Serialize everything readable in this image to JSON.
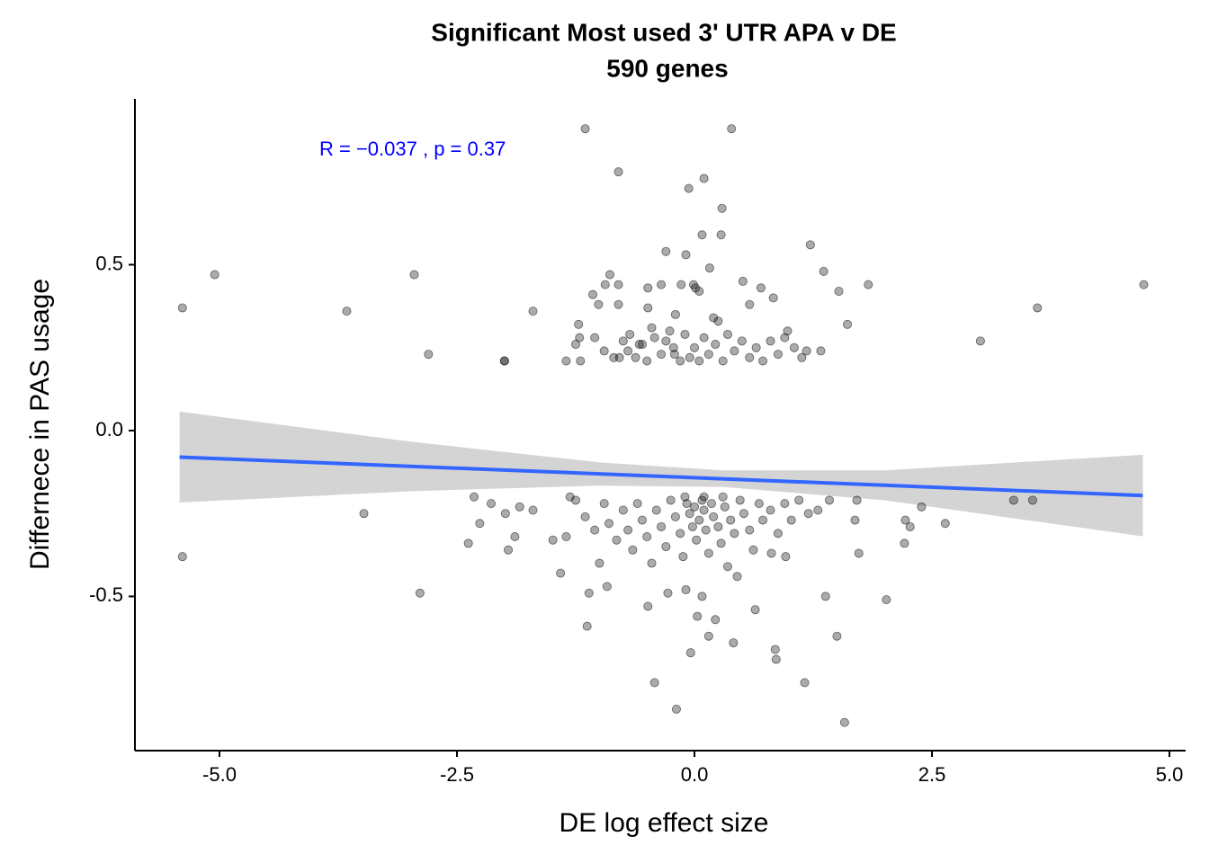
{
  "chart_data": {
    "type": "scatter",
    "title": "Significant Most used 3' UTR APA v DE",
    "subtitle": "590 genes",
    "x_label": "DE log effect size",
    "y_label": "Differnece in PAS usage",
    "annotation": "R = −0.037 , p = 0.37",
    "annotation_color": "#0000ff",
    "xlim": [
      -5.89,
      5.17
    ],
    "ylim": [
      -0.965,
      1.0
    ],
    "xticks": [
      {
        "value": -5,
        "label": "-5.0"
      },
      -2.5,
      {
        "value": 0,
        "label": "0.0"
      },
      2.5,
      {
        "value": 5,
        "label": "5.0"
      }
    ],
    "yticks": [
      -0.5,
      {
        "value": 0,
        "label": "0.0"
      },
      0.5
    ],
    "grid": false,
    "color": "#000000",
    "x": [
      -5.39,
      -5.05,
      -5.39,
      -3.66,
      -3.48,
      -2.95,
      -2.89,
      -2.8,
      -2.38,
      -2.32,
      -2.26,
      -2.14,
      -2.0,
      -2.0,
      -1.99,
      -1.96,
      -1.89,
      -1.84,
      -1.7,
      -1.7,
      -1.49,
      -1.41,
      -1.35,
      -1.31,
      -1.15,
      -1.13,
      -1.11,
      -1.07,
      -1.01,
      -1.22,
      -1.21,
      -1.2,
      -0.8,
      -0.92,
      -0.89,
      -0.94,
      -0.8,
      -0.8,
      -0.79,
      -0.68,
      -0.55,
      -0.49,
      -0.49,
      -0.45,
      -0.35,
      -0.3,
      -0.26,
      -0.21,
      -0.14,
      -0.09,
      -0.06,
      -0.01,
      0.01,
      0.05,
      0.08,
      0.1,
      0.16,
      0.2,
      0.28,
      0.29,
      0.39,
      0.51,
      0.58,
      0.7,
      0.83,
      0.98,
      1.22,
      1.36,
      1.52,
      1.61,
      1.83,
      1.13,
      1.33,
      3.01,
      3.61,
      4.73,
      3.36,
      3.56,
      2.64,
      2.39,
      2.27,
      2.22,
      2.21,
      2.02,
      1.73,
      1.71,
      1.69,
      1.5,
      1.58,
      1.38,
      1.16,
      0.96,
      0.85,
      0.86,
      0.64,
      0.41,
      0.22,
      0.15,
      0.08,
      -0.04,
      -0.19,
      -0.42,
      -0.49,
      -0.28,
      -0.09,
      0.03,
      0.45,
      0.81,
      -1.05,
      -0.95,
      -0.85,
      -0.75,
      -0.7,
      -0.62,
      -0.58,
      -0.5,
      -0.42,
      -0.35,
      -0.3,
      -0.22,
      -0.15,
      -0.1,
      -0.05,
      0.0,
      0.05,
      0.1,
      0.15,
      0.22,
      0.3,
      0.35,
      0.42,
      0.5,
      0.58,
      0.65,
      0.72,
      0.8,
      0.88,
      0.95,
      1.05,
      1.18,
      -1.25,
      0.25,
      -0.2,
      -1.25,
      -1.15,
      -1.05,
      -0.95,
      -0.9,
      -0.82,
      -0.75,
      -0.7,
      -0.65,
      -0.6,
      -0.55,
      -0.5,
      -0.45,
      -0.4,
      -0.35,
      -0.3,
      -0.25,
      -0.2,
      -0.15,
      -0.12,
      -0.08,
      -0.05,
      -0.02,
      0.0,
      0.02,
      0.05,
      0.08,
      0.1,
      0.12,
      0.15,
      0.18,
      0.2,
      0.25,
      0.28,
      0.32,
      0.38,
      0.42,
      0.48,
      0.52,
      0.58,
      0.62,
      0.68,
      0.72,
      0.8,
      0.88,
      0.95,
      1.02,
      1.1,
      1.2,
      1.3,
      1.42,
      -1.35,
      -1.0,
      0.35,
      -0.1,
      0.1,
      0.3
    ],
    "values": [
      0.37,
      0.47,
      -0.38,
      0.36,
      -0.25,
      0.47,
      -0.49,
      0.23,
      -0.34,
      -0.2,
      -0.28,
      -0.22,
      0.21,
      0.21,
      -0.25,
      -0.36,
      -0.32,
      -0.23,
      0.36,
      -0.24,
      -0.33,
      -0.43,
      0.21,
      -0.2,
      0.91,
      -0.59,
      -0.49,
      0.41,
      0.38,
      0.32,
      0.28,
      0.21,
      0.78,
      -0.47,
      0.47,
      0.44,
      0.44,
      0.38,
      0.22,
      0.29,
      0.26,
      0.43,
      0.37,
      0.31,
      0.44,
      0.54,
      0.3,
      0.23,
      0.44,
      0.53,
      0.73,
      0.44,
      0.43,
      0.42,
      0.59,
      0.76,
      0.49,
      0.34,
      0.59,
      0.67,
      0.91,
      0.45,
      0.38,
      0.43,
      0.4,
      0.3,
      0.56,
      0.48,
      0.42,
      0.32,
      0.44,
      0.22,
      0.24,
      0.27,
      0.37,
      0.44,
      -0.21,
      -0.21,
      -0.28,
      -0.23,
      -0.29,
      -0.27,
      -0.34,
      -0.51,
      -0.37,
      -0.21,
      -0.27,
      -0.62,
      -0.88,
      -0.5,
      -0.76,
      -0.38,
      -0.66,
      -0.69,
      -0.54,
      -0.64,
      -0.57,
      -0.62,
      -0.5,
      -0.67,
      -0.84,
      -0.76,
      -0.53,
      -0.49,
      -0.48,
      -0.56,
      -0.44,
      -0.37,
      0.28,
      0.24,
      0.22,
      0.27,
      0.24,
      0.22,
      0.26,
      0.21,
      0.28,
      0.23,
      0.27,
      0.25,
      0.21,
      0.29,
      0.22,
      0.25,
      0.21,
      0.28,
      0.23,
      0.26,
      0.21,
      0.29,
      0.24,
      0.27,
      0.22,
      0.25,
      0.21,
      0.27,
      0.23,
      0.28,
      0.25,
      0.24,
      0.26,
      0.33,
      0.35,
      -0.21,
      -0.26,
      -0.3,
      -0.22,
      -0.28,
      -0.33,
      -0.24,
      -0.3,
      -0.36,
      -0.22,
      -0.27,
      -0.32,
      -0.4,
      -0.24,
      -0.29,
      -0.35,
      -0.21,
      -0.26,
      -0.31,
      -0.38,
      -0.22,
      -0.25,
      -0.29,
      -0.23,
      -0.33,
      -0.27,
      -0.21,
      -0.24,
      -0.3,
      -0.37,
      -0.22,
      -0.26,
      -0.29,
      -0.34,
      -0.23,
      -0.27,
      -0.31,
      -0.21,
      -0.25,
      -0.3,
      -0.36,
      -0.22,
      -0.27,
      -0.24,
      -0.31,
      -0.22,
      -0.27,
      -0.21,
      -0.25,
      -0.24,
      -0.21,
      -0.32,
      -0.4,
      -0.41,
      -0.2,
      -0.2,
      -0.2
    ],
    "fit": {
      "color": "#3366ff",
      "x": [
        -5.42,
        4.72
      ],
      "y": [
        -0.08,
        -0.196
      ]
    },
    "band": {
      "color": "#d4d4d4",
      "x": [
        -5.42,
        -3,
        -1,
        0.3,
        2,
        4.72
      ],
      "upper": [
        0.057,
        -0.033,
        -0.096,
        -0.12,
        -0.12,
        -0.073
      ],
      "lower": [
        -0.217,
        -0.183,
        -0.166,
        -0.17,
        -0.21,
        -0.319
      ]
    }
  }
}
